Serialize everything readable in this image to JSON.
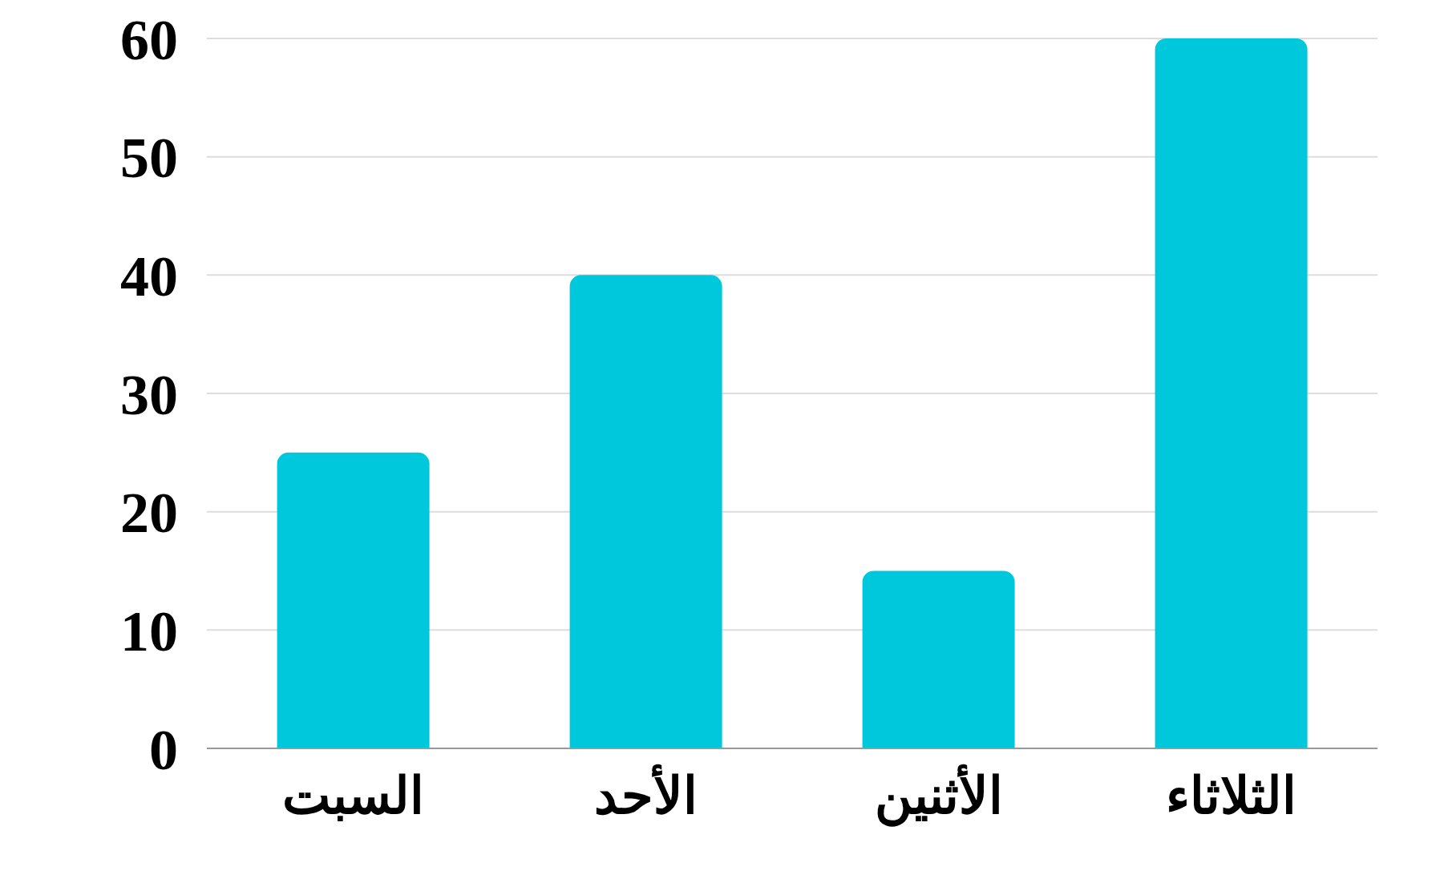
{
  "chart_data": {
    "type": "bar",
    "categories": [
      "السبت",
      "الأحد",
      "الأثنين",
      "الثلاثاء"
    ],
    "values": [
      25,
      40,
      15,
      60
    ],
    "color": "#00c8dc",
    "ylim": [
      0,
      60
    ],
    "yticks": [
      0,
      10,
      20,
      30,
      40,
      50,
      60
    ],
    "grid": "y"
  }
}
